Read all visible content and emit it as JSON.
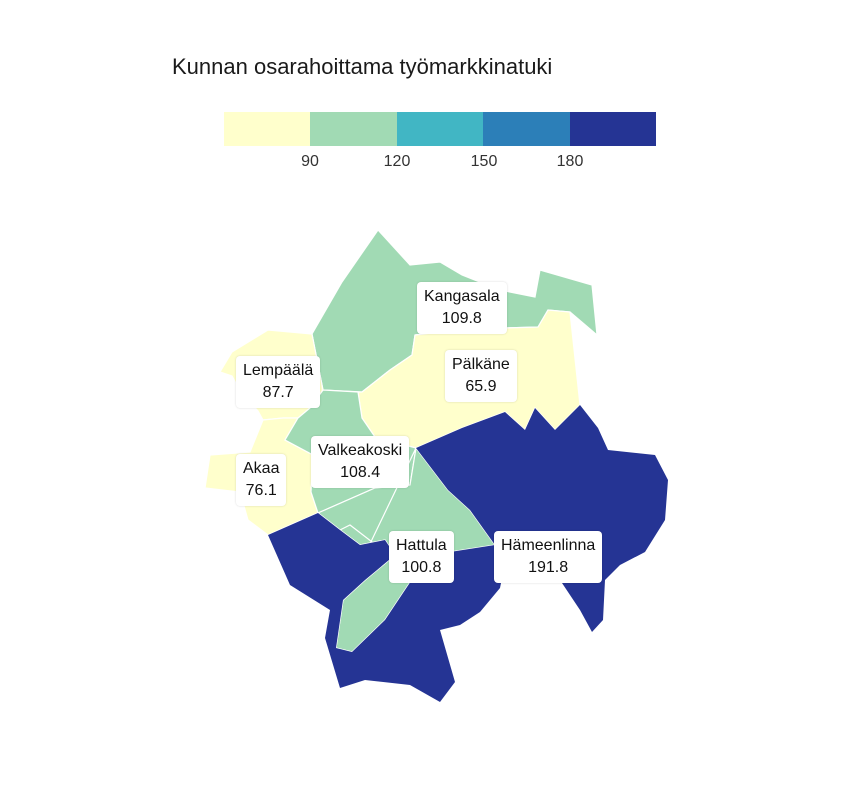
{
  "title": "Kunnan osarahoittama työmarkkinatuki",
  "legend": {
    "colors": [
      "#ffffcc",
      "#a1dab4",
      "#41b6c4",
      "#2c7fb8",
      "#253494"
    ],
    "ticks": [
      "90",
      "120",
      "150",
      "180"
    ]
  },
  "regions": [
    {
      "name": "Kangasala",
      "value": "109.8",
      "color": "#a1dab4"
    },
    {
      "name": "Lempäälä",
      "value": "87.7",
      "color": "#ffffcc"
    },
    {
      "name": "Pälkäne",
      "value": "65.9",
      "color": "#ffffcc"
    },
    {
      "name": "Akaa",
      "value": "76.1",
      "color": "#ffffcc"
    },
    {
      "name": "Valkeakoski",
      "value": "108.4",
      "color": "#a1dab4"
    },
    {
      "name": "Hattula",
      "value": "100.8",
      "color": "#a1dab4"
    },
    {
      "name": "Hämeenlinna",
      "value": "191.8",
      "color": "#253494"
    }
  ]
}
